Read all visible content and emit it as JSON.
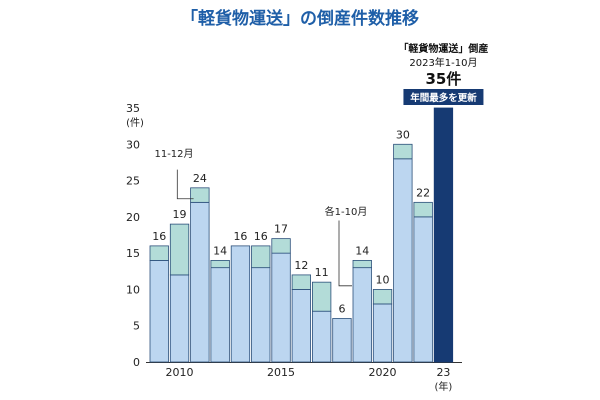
{
  "chart_data": {
    "type": "bar",
    "title": "「軽貨物運送」の倒産件数推移",
    "ylabel": "(件)",
    "xunit": "(年)",
    "ylim": [
      0,
      35
    ],
    "yticks": [
      "0",
      "5",
      "10",
      "15",
      "20",
      "25",
      "30",
      "35"
    ],
    "categories": [
      "2009",
      "2010",
      "2011",
      "2012",
      "2013",
      "2014",
      "2015",
      "2016",
      "2017",
      "2018",
      "2019",
      "2020",
      "2021",
      "2022",
      "2023"
    ],
    "xtick_labels": [
      "",
      "2010",
      "",
      "",
      "",
      "",
      "2015",
      "",
      "",
      "",
      "",
      "2020",
      "",
      "",
      "23"
    ],
    "totals": [
      16,
      19,
      24,
      14,
      16,
      16,
      17,
      12,
      11,
      6,
      14,
      10,
      30,
      22,
      35
    ],
    "total_labels": [
      "16",
      "19",
      "24",
      "14",
      "16",
      "16",
      "17",
      "12",
      "11",
      "6",
      "14",
      "10",
      "30",
      "22",
      ""
    ],
    "series": [
      {
        "name": "1-10月",
        "color": "#bcd6f0",
        "values": [
          14,
          12,
          22,
          13,
          16,
          13,
          15,
          10,
          7,
          6,
          13,
          8,
          28,
          20,
          35
        ]
      },
      {
        "name": "11-12月",
        "color": "#b3dcd8",
        "values": [
          2,
          7,
          2,
          1,
          0,
          3,
          2,
          2,
          4,
          0,
          1,
          2,
          2,
          2,
          0
        ]
      }
    ],
    "highlight": {
      "index": 14,
      "color": "#163a73"
    },
    "annotations": {
      "nov_dec": "11-12月",
      "jan_oct": "各1-10月",
      "callout_line1": "「軽貨物運送」倒産",
      "callout_line2": "2023年1-10月",
      "callout_value": "35件",
      "callout_badge": "年間最多を更新"
    },
    "colors": {
      "title": "#1f5fa8",
      "axis": "#222222",
      "bar_stroke": "#2b4f7a",
      "badge_bg": "#163a73",
      "badge_text": "#ffffff"
    }
  }
}
